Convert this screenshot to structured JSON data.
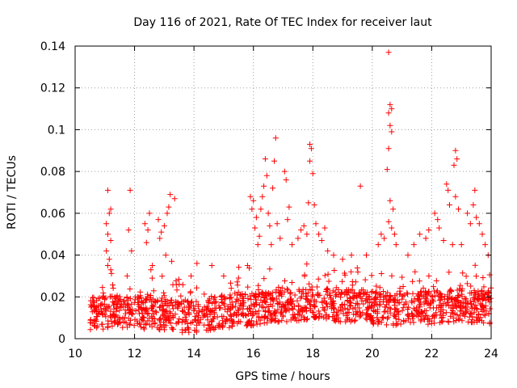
{
  "chart_data": {
    "type": "scatter",
    "title": "Day 116 of 2021, Rate Of TEC Index for receiver laut",
    "xlabel": "GPS time / hours",
    "ylabel": "ROTI / TECUs",
    "xlim": [
      10,
      24
    ],
    "ylim": [
      0,
      0.14
    ],
    "xticks": [
      10,
      12,
      14,
      16,
      18,
      20,
      22,
      24
    ],
    "xtick_labels": [
      "10",
      "12",
      "14",
      "16",
      "18",
      "20",
      "22",
      "24"
    ],
    "yticks": [
      0,
      0.02,
      0.04,
      0.06,
      0.08,
      0.1,
      0.12,
      0.14
    ],
    "ytick_labels": [
      "0",
      "0.02",
      "0.04",
      "0.06",
      "0.08",
      "0.1",
      "0.12",
      "0.14"
    ],
    "grid": true,
    "marker": "plus",
    "color": "#ff0000",
    "series": [
      {
        "name": "ROTI",
        "baseline_profile": [
          [
            10.5,
            0.012
          ],
          [
            12,
            0.013
          ],
          [
            14,
            0.01
          ],
          [
            15,
            0.013
          ],
          [
            16,
            0.014
          ],
          [
            17,
            0.016
          ],
          [
            18,
            0.017
          ],
          [
            19,
            0.016
          ],
          [
            20,
            0.015
          ],
          [
            21,
            0.014
          ],
          [
            22,
            0.015
          ],
          [
            23,
            0.016
          ],
          [
            24,
            0.015
          ]
        ],
        "points": [
          [
            11.1,
            0.071
          ],
          [
            11.2,
            0.062
          ],
          [
            11.15,
            0.06
          ],
          [
            11.05,
            0.055
          ],
          [
            11.1,
            0.05
          ],
          [
            11.2,
            0.047
          ],
          [
            11.05,
            0.042
          ],
          [
            11.1,
            0.035
          ],
          [
            11.2,
            0.033
          ],
          [
            11.15,
            0.038
          ],
          [
            11.85,
            0.071
          ],
          [
            11.8,
            0.052
          ],
          [
            11.9,
            0.042
          ],
          [
            11.75,
            0.03
          ],
          [
            12.35,
            0.055
          ],
          [
            12.45,
            0.052
          ],
          [
            12.5,
            0.06
          ],
          [
            12.4,
            0.046
          ],
          [
            12.6,
            0.035
          ],
          [
            12.55,
            0.033
          ],
          [
            12.8,
            0.057
          ],
          [
            12.9,
            0.051
          ],
          [
            12.85,
            0.048
          ],
          [
            13.0,
            0.054
          ],
          [
            13.1,
            0.06
          ],
          [
            13.2,
            0.069
          ],
          [
            13.35,
            0.067
          ],
          [
            13.15,
            0.063
          ],
          [
            13.05,
            0.04
          ],
          [
            13.25,
            0.037
          ],
          [
            13.5,
            0.026
          ],
          [
            13.9,
            0.03
          ],
          [
            14.1,
            0.036
          ],
          [
            14.6,
            0.035
          ],
          [
            15.0,
            0.03
          ],
          [
            15.5,
            0.029
          ],
          [
            15.8,
            0.035
          ],
          [
            15.9,
            0.068
          ],
          [
            16.0,
            0.066
          ],
          [
            15.95,
            0.062
          ],
          [
            16.1,
            0.058
          ],
          [
            16.05,
            0.053
          ],
          [
            16.2,
            0.049
          ],
          [
            16.3,
            0.068
          ],
          [
            16.35,
            0.073
          ],
          [
            16.25,
            0.062
          ],
          [
            16.15,
            0.045
          ],
          [
            16.4,
            0.086
          ],
          [
            16.45,
            0.078
          ],
          [
            16.5,
            0.06
          ],
          [
            16.55,
            0.054
          ],
          [
            16.6,
            0.045
          ],
          [
            16.7,
            0.085
          ],
          [
            16.75,
            0.096
          ],
          [
            16.65,
            0.072
          ],
          [
            16.8,
            0.055
          ],
          [
            16.9,
            0.048
          ],
          [
            17.05,
            0.08
          ],
          [
            17.1,
            0.076
          ],
          [
            17.2,
            0.063
          ],
          [
            17.15,
            0.057
          ],
          [
            17.3,
            0.045
          ],
          [
            17.5,
            0.048
          ],
          [
            17.6,
            0.052
          ],
          [
            17.7,
            0.054
          ],
          [
            17.8,
            0.05
          ],
          [
            17.85,
            0.065
          ],
          [
            17.9,
            0.093
          ],
          [
            17.95,
            0.091
          ],
          [
            17.9,
            0.085
          ],
          [
            18.0,
            0.079
          ],
          [
            18.05,
            0.064
          ],
          [
            18.1,
            0.055
          ],
          [
            18.2,
            0.05
          ],
          [
            18.3,
            0.047
          ],
          [
            18.4,
            0.053
          ],
          [
            18.5,
            0.042
          ],
          [
            18.7,
            0.04
          ],
          [
            19.0,
            0.038
          ],
          [
            19.3,
            0.04
          ],
          [
            19.6,
            0.073
          ],
          [
            19.8,
            0.04
          ],
          [
            20.2,
            0.045
          ],
          [
            20.3,
            0.05
          ],
          [
            20.4,
            0.048
          ],
          [
            20.55,
            0.137
          ],
          [
            20.6,
            0.112
          ],
          [
            20.65,
            0.11
          ],
          [
            20.55,
            0.108
          ],
          [
            20.6,
            0.102
          ],
          [
            20.65,
            0.099
          ],
          [
            20.55,
            0.091
          ],
          [
            20.5,
            0.081
          ],
          [
            20.6,
            0.066
          ],
          [
            20.7,
            0.062
          ],
          [
            20.55,
            0.056
          ],
          [
            20.65,
            0.053
          ],
          [
            20.75,
            0.05
          ],
          [
            20.8,
            0.045
          ],
          [
            21.2,
            0.04
          ],
          [
            21.4,
            0.045
          ],
          [
            21.6,
            0.05
          ],
          [
            21.8,
            0.048
          ],
          [
            21.9,
            0.052
          ],
          [
            22.1,
            0.06
          ],
          [
            22.2,
            0.057
          ],
          [
            22.25,
            0.053
          ],
          [
            22.5,
            0.074
          ],
          [
            22.55,
            0.071
          ],
          [
            22.6,
            0.064
          ],
          [
            22.4,
            0.047
          ],
          [
            22.7,
            0.045
          ],
          [
            22.8,
            0.09
          ],
          [
            22.85,
            0.086
          ],
          [
            22.75,
            0.083
          ],
          [
            22.8,
            0.068
          ],
          [
            22.9,
            0.062
          ],
          [
            23.0,
            0.045
          ],
          [
            23.2,
            0.06
          ],
          [
            23.3,
            0.055
          ],
          [
            23.4,
            0.064
          ],
          [
            23.45,
            0.071
          ],
          [
            23.5,
            0.058
          ],
          [
            23.6,
            0.055
          ],
          [
            23.7,
            0.05
          ],
          [
            23.8,
            0.045
          ],
          [
            23.9,
            0.04
          ]
        ]
      }
    ]
  }
}
